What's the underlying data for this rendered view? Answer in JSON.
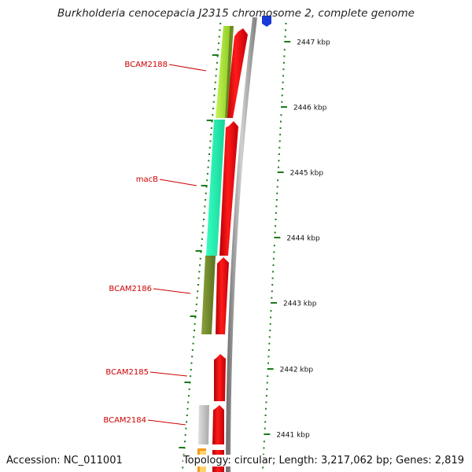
{
  "title": "Burkholderia cenocepacia J2315 chromosome 2, complete genome",
  "accession_text": "Accession: NC_011001",
  "summary_text": "Topology: circular; Length: 3,217,062 bp; Genes: 2,819",
  "scale_ticks": [
    {
      "label": "2447 kbp"
    },
    {
      "label": "2446 kbp"
    },
    {
      "label": "2445 kbp"
    },
    {
      "label": "2444 kbp"
    },
    {
      "label": "2443 kbp"
    },
    {
      "label": "2442 kbp"
    },
    {
      "label": "2441 kbp"
    }
  ],
  "gene_labels": [
    {
      "name": "BCAM2188"
    },
    {
      "name": "macB"
    },
    {
      "name": "BCAM2186"
    },
    {
      "name": "BCAM2185"
    },
    {
      "name": "BCAM2184"
    }
  ],
  "colors": {
    "cds": "#e8000a",
    "bcam2188": "#a8e63a",
    "macB": "#22f0a8",
    "bcam2186": "#6f8a2a",
    "bcam2184": "#c0c0c0",
    "other": "#f59a1a",
    "top_feature": "#1a3ad8",
    "backbone": "#9a9a9a",
    "tick": "#1a7a1a",
    "label": "#cc0000"
  }
}
